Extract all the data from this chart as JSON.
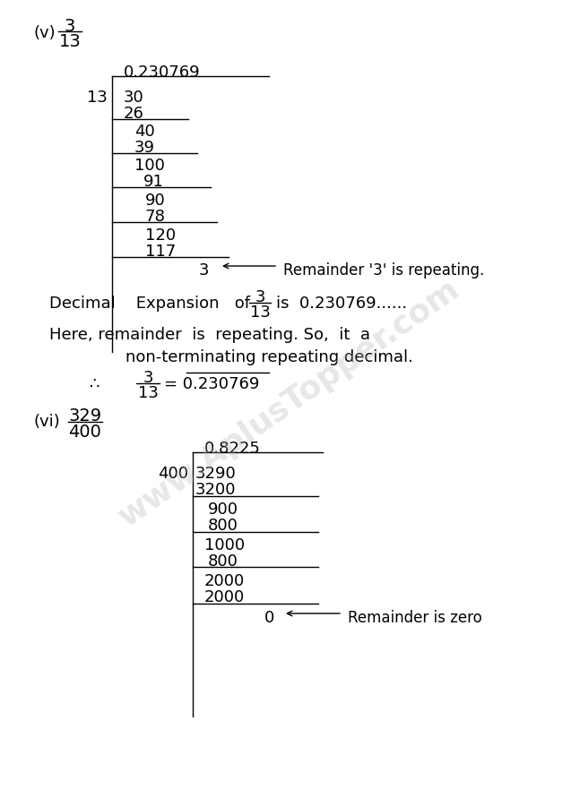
{
  "bg_color": "#ffffff",
  "watermark": "www.AplusTopper.com",
  "section_v": {
    "label": "(v)",
    "frac_num": "3",
    "frac_den": "13",
    "quotient": "0.230769",
    "divisor": "13",
    "remainder": "3",
    "remainder_note": "Remainder '3' is repeating.",
    "conc1": "Decimal    Expansion   of",
    "conc_frac_num": "3",
    "conc_frac_den": "13",
    "conc2": "is  0.230769......",
    "conc3": "Here, remainder  is  repeating. So,  it  a",
    "conc4": "non-terminating repeating decimal.",
    "there_frac_num": "3",
    "there_frac_den": "13",
    "there_eq": "= 0.230769"
  },
  "section_vi": {
    "label": "(vi)",
    "frac_num": "329",
    "frac_den": "400",
    "quotient": "0.8225",
    "divisor": "400",
    "remainder": "0",
    "remainder_note": "Remainder is zero"
  }
}
